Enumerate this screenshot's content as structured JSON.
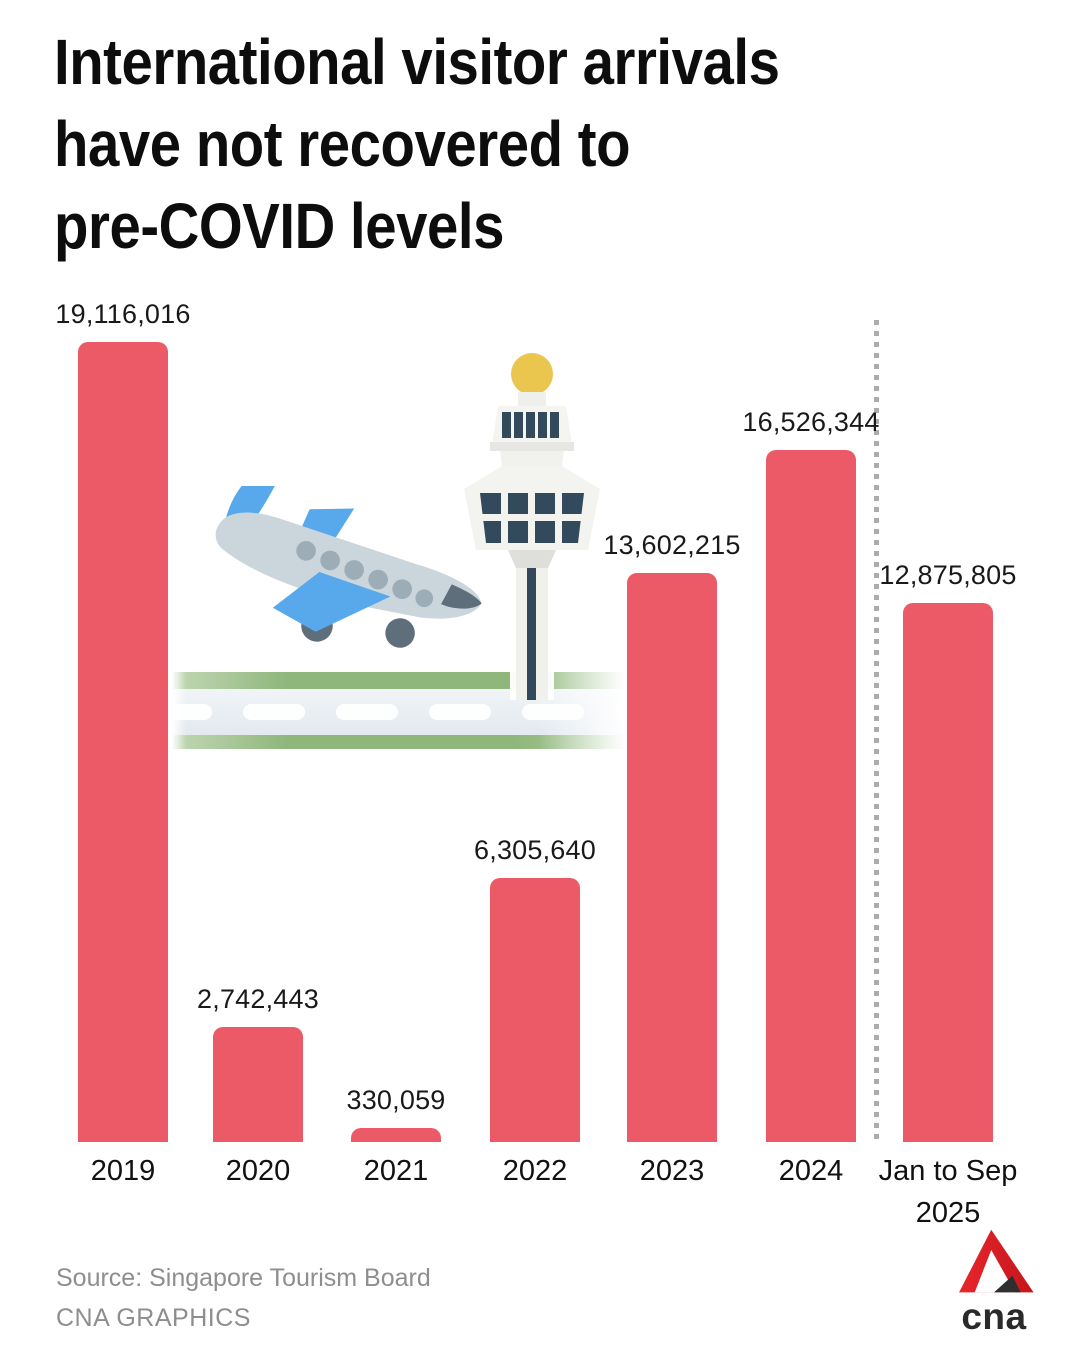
{
  "title": "International visitor arrivals\nhave not recovered to\npre-COVID levels",
  "chart_data": {
    "type": "bar",
    "title": "International visitor arrivals have not recovered to pre-COVID levels",
    "categories": [
      "2019",
      "2020",
      "2021",
      "2022",
      "2023",
      "2024",
      "Jan to Sep 2025"
    ],
    "values": [
      19116016,
      2742443,
      330059,
      6305640,
      13602215,
      16526344,
      12875805
    ],
    "ylim": [
      0,
      19116016
    ],
    "grid": false,
    "legend": false,
    "bar_color": "#EB5A66",
    "divider": {
      "between": [
        "2024",
        "Jan to Sep 2025"
      ],
      "style": "dotted",
      "color": "#ABABAB"
    },
    "bars": [
      {
        "category": "2019",
        "axis_lines": [
          "2019"
        ],
        "value": 19116016,
        "value_label": "19,116,016"
      },
      {
        "category": "2020",
        "axis_lines": [
          "2020"
        ],
        "value": 2742443,
        "value_label": "2,742,443"
      },
      {
        "category": "2021",
        "axis_lines": [
          "2021"
        ],
        "value": 330059,
        "value_label": "330,059"
      },
      {
        "category": "2022",
        "axis_lines": [
          "2022"
        ],
        "value": 6305640,
        "value_label": "6,305,640"
      },
      {
        "category": "2023",
        "axis_lines": [
          "2023"
        ],
        "value": 13602215,
        "value_label": "13,602,215"
      },
      {
        "category": "2024",
        "axis_lines": [
          "2024"
        ],
        "value": 16526344,
        "value_label": "16,526,344"
      },
      {
        "category": "Jan to Sep 2025",
        "axis_lines": [
          "Jan to Sep",
          "2025"
        ],
        "value": 12875805,
        "value_label": "12,875,805"
      }
    ]
  },
  "illustration": {
    "plane_icon": "airplane-landing",
    "tower_icon": "changi-control-tower",
    "runway_icon": "runway"
  },
  "footer": {
    "source": "Source: Singapore Tourism Board",
    "credit": "CNA GRAPHICS"
  },
  "logo": {
    "text": "cna",
    "red": "#E2241C",
    "dark": "#2A2A2A"
  }
}
